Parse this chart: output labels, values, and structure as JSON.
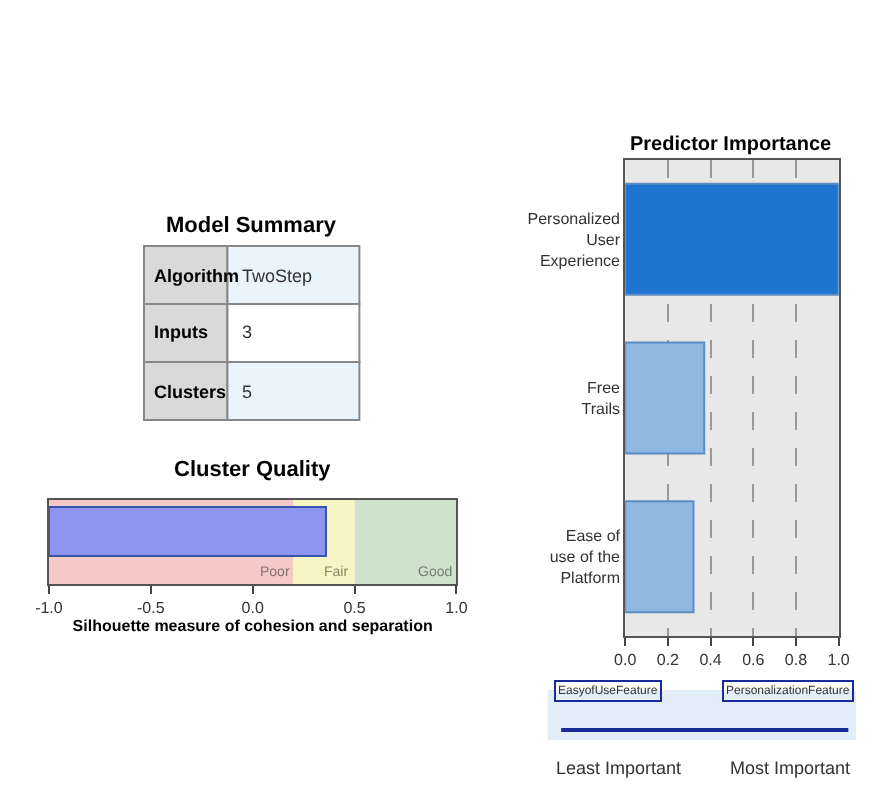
{
  "chart_data": [
    {
      "type": "other",
      "title": "Model Summary",
      "categories": [
        "Algorithm",
        "Inputs",
        "Clusters"
      ],
      "value_labels": [
        "TwoStep",
        "3",
        "5"
      ]
    },
    {
      "type": "bar",
      "title": "Cluster Quality",
      "orientation": "horizontal",
      "categories": [
        null
      ],
      "base": [
        -1
      ],
      "values": [
        1.36
      ],
      "color": "#8f94f0",
      "xlim": [
        -1,
        1
      ],
      "xticks": [
        {
          "value": -1,
          "label": "-1.0"
        },
        {
          "value": -0.5,
          "label": "-0.5"
        },
        {
          "value": 0,
          "label": "0.0"
        },
        {
          "value": 0.5,
          "label": "0.5"
        },
        {
          "value": 1,
          "label": "1.0"
        }
      ],
      "xlabel": "Silhouette measure of cohesion and separation",
      "grid": false,
      "bands": [
        {
          "axis": "x",
          "from": -1,
          "to": 0.2,
          "label": "Poor",
          "color": "#f6c9c9"
        },
        {
          "axis": "x",
          "from": 0.2,
          "to": 0.5,
          "label": "Fair",
          "color": "#f8f5c4"
        },
        {
          "axis": "x",
          "from": 0.5,
          "to": 1,
          "label": "Good",
          "color": "#cfe3cc"
        }
      ]
    },
    {
      "type": "bar",
      "title": "Predictor Importance",
      "orientation": "horizontal",
      "categories": [
        "Personalized User Experience",
        "Free Trails",
        "Ease of use of the Platform"
      ],
      "values": [
        1.0,
        0.37,
        0.32
      ],
      "colors": [
        "#1f74d0",
        "#8fb8e0",
        "#8fb8e0"
      ],
      "xlim": [
        0,
        1
      ],
      "xticks": [
        {
          "value": 0,
          "label": "0.0"
        },
        {
          "value": 0.2,
          "label": "0.2"
        },
        {
          "value": 0.4,
          "label": "0.4"
        },
        {
          "value": 0.6,
          "label": "0.6"
        },
        {
          "value": 0.8,
          "label": "0.8"
        },
        {
          "value": 1,
          "label": "1.0"
        }
      ],
      "grid": "x",
      "annotations": [
        "EasyofUseFeature",
        "PersonalizationFeature",
        "Least Important",
        "Most Important"
      ]
    }
  ]
}
